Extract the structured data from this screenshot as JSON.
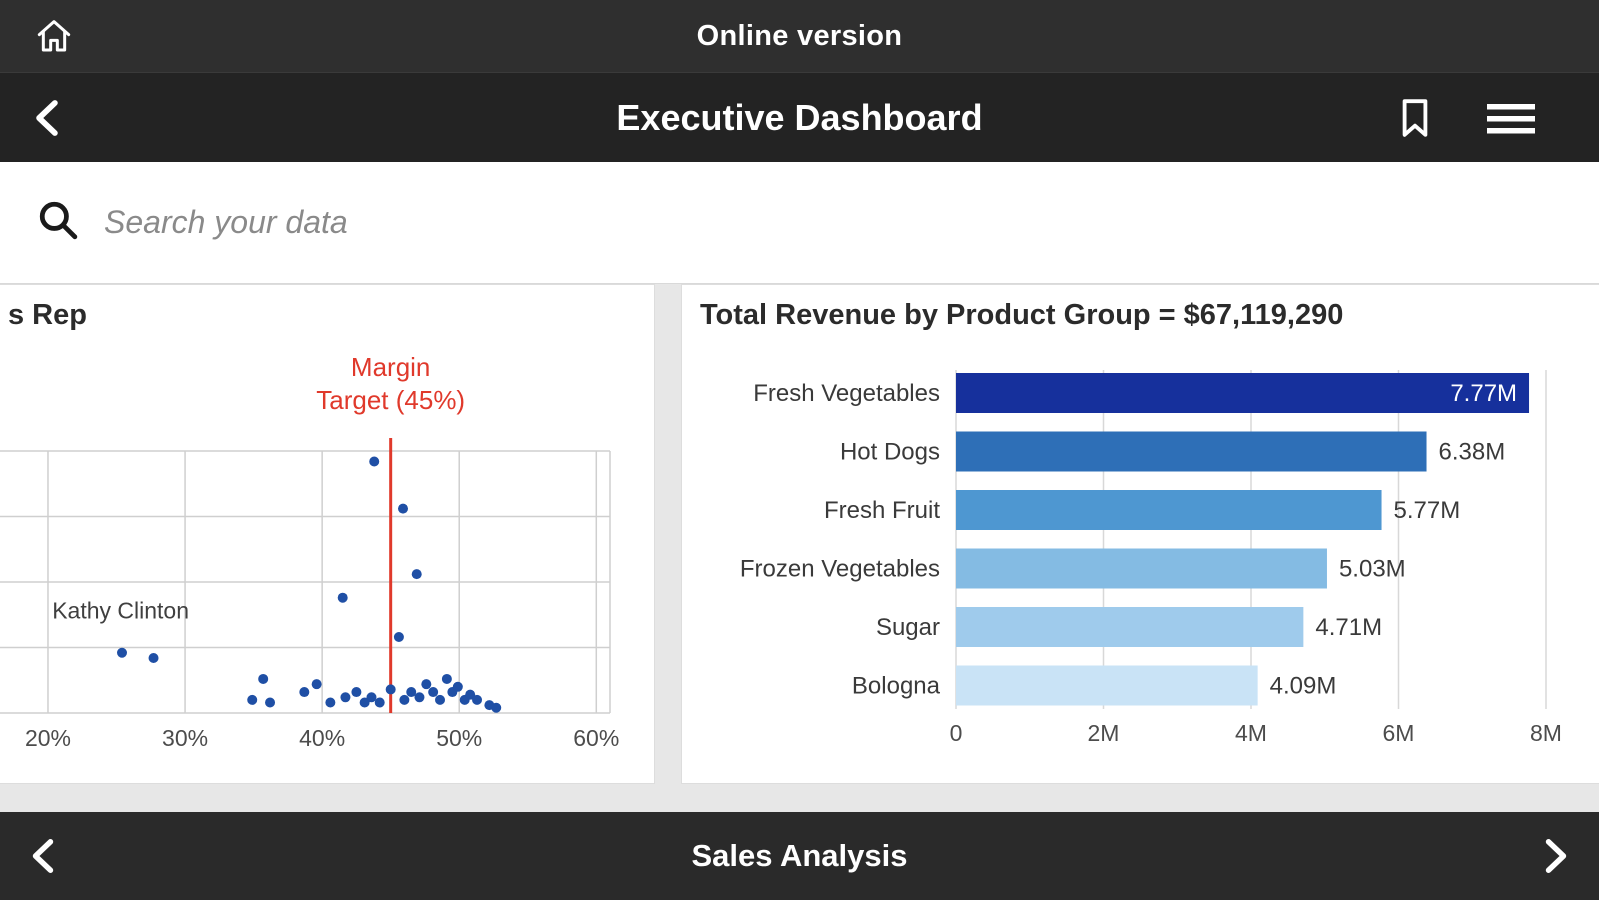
{
  "topbar": {
    "label": "Online version"
  },
  "titlebar": {
    "title": "Executive Dashboard"
  },
  "search": {
    "placeholder": "Search your data",
    "value": ""
  },
  "bottombar": {
    "label": "Sales Analysis"
  },
  "icons": {
    "home": "house-outline",
    "back": "chevron-left",
    "bookmark": "bookmark-outline",
    "menu": "hamburger",
    "search": "magnifier",
    "prev": "chevron-left",
    "next": "chevron-right"
  },
  "colors": {
    "bar_dark": "#2a2a2a",
    "accent_red": "#e0392b",
    "point_blue": "#1f4fa5"
  },
  "chart_data": [
    {
      "type": "scatter",
      "title_fragment": "s Rep",
      "x_ticks": [
        20,
        30,
        40,
        50,
        60
      ],
      "x_tick_labels": [
        "20%",
        "30%",
        "40%",
        "50%",
        "60%"
      ],
      "x_range": [
        16.5,
        61
      ],
      "y_range": [
        0,
        100
      ],
      "grid": true,
      "point_color": "#1f4fa5",
      "ref_line": {
        "x": 45,
        "label_lines": [
          "Margin",
          "Target (45%)"
        ],
        "color": "#e0392b"
      },
      "point_label": {
        "text": "Kathy Clinton",
        "x": 25.3,
        "y": 36
      },
      "points": [
        [
          43.8,
          96
        ],
        [
          45.9,
          78
        ],
        [
          46.9,
          53
        ],
        [
          41.5,
          44
        ],
        [
          45.6,
          29
        ],
        [
          25.4,
          23
        ],
        [
          27.7,
          21
        ],
        [
          34.9,
          5
        ],
        [
          35.7,
          13
        ],
        [
          36.2,
          4
        ],
        [
          38.7,
          8
        ],
        [
          39.6,
          11
        ],
        [
          40.6,
          4
        ],
        [
          41.7,
          6
        ],
        [
          42.5,
          8
        ],
        [
          43.1,
          4
        ],
        [
          43.6,
          6
        ],
        [
          44.2,
          4
        ],
        [
          45.0,
          9
        ],
        [
          46.0,
          5
        ],
        [
          46.5,
          8
        ],
        [
          47.1,
          6
        ],
        [
          47.6,
          11
        ],
        [
          48.1,
          8
        ],
        [
          48.6,
          5
        ],
        [
          49.1,
          13
        ],
        [
          49.5,
          8
        ],
        [
          49.9,
          10
        ],
        [
          50.4,
          5
        ],
        [
          50.8,
          7
        ],
        [
          51.3,
          5
        ],
        [
          52.2,
          3
        ],
        [
          52.7,
          2
        ]
      ]
    },
    {
      "type": "bar",
      "orientation": "horizontal",
      "title": "Total Revenue by Product Group = $67,119,290",
      "categories": [
        "Fresh Vegetables",
        "Hot Dogs",
        "Fresh Fruit",
        "Frozen Vegetables",
        "Sugar",
        "Bologna"
      ],
      "values": [
        7.77,
        6.38,
        5.77,
        5.03,
        4.71,
        4.09
      ],
      "value_labels": [
        "7.77M",
        "6.38M",
        "5.77M",
        "5.03M",
        "4.71M",
        "4.09M"
      ],
      "bar_colors": [
        "#16309c",
        "#2e6fb7",
        "#4e97d1",
        "#84bbe3",
        "#9fcbec",
        "#c9e3f6"
      ],
      "x_ticks": [
        0,
        2,
        4,
        6,
        8
      ],
      "x_tick_labels": [
        "0",
        "2M",
        "4M",
        "6M",
        "8M"
      ],
      "xlim": [
        0,
        8
      ],
      "grid": true
    }
  ]
}
